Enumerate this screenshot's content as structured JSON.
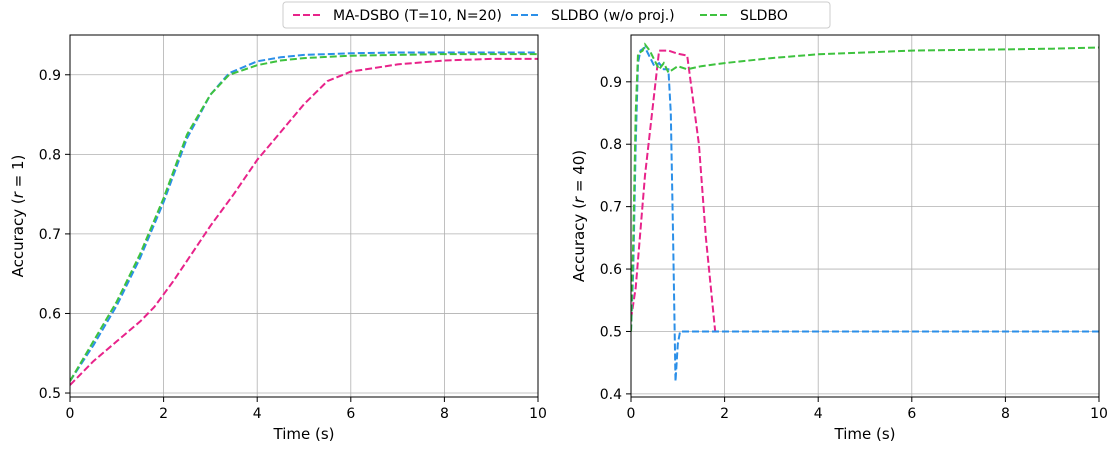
{
  "legend": {
    "position": "top-center",
    "items": [
      {
        "name": "MA-DSBO (T=10, N=20)",
        "color": "#e8238a"
      },
      {
        "name": "SLDBO (w/o proj.)",
        "color": "#2b8fe8"
      },
      {
        "name": "SLDBO",
        "color": "#3ec23e"
      }
    ]
  },
  "chart_data": [
    {
      "type": "line",
      "title": "",
      "xlabel": "Time (s)",
      "ylabel": "Accuracy (r = 1)",
      "ylabel_parts": {
        "prefix": "Accuracy (",
        "var": "r",
        "suffix": " = 1)"
      },
      "xlim": [
        0,
        10
      ],
      "ylim": [
        0.495,
        0.95
      ],
      "xticks": [
        0,
        2,
        4,
        6,
        8,
        10
      ],
      "yticks": [
        0.5,
        0.6,
        0.7,
        0.8,
        0.9
      ],
      "xtick_labels": [
        "0",
        "2",
        "4",
        "6",
        "8",
        "10"
      ],
      "ytick_labels": [
        "0.5",
        "0.6",
        "0.7",
        "0.8",
        "0.9"
      ],
      "grid": true,
      "series": [
        {
          "name": "MA-DSBO (T=10, N=20)",
          "color": "#e8238a",
          "x": [
            0,
            0.5,
            1,
            1.5,
            1.8,
            2.2,
            2.6,
            3.0,
            3.5,
            4.0,
            4.5,
            5.0,
            5.5,
            6.0,
            7.0,
            8.0,
            9.0,
            10.0
          ],
          "y": [
            0.51,
            0.54,
            0.565,
            0.59,
            0.608,
            0.64,
            0.675,
            0.71,
            0.75,
            0.793,
            0.828,
            0.863,
            0.892,
            0.904,
            0.913,
            0.918,
            0.92,
            0.92
          ]
        },
        {
          "name": "SLDBO (w/o proj.)",
          "color": "#2b8fe8",
          "x": [
            0,
            0.5,
            1.0,
            1.5,
            2.0,
            2.5,
            3.0,
            3.4,
            4.0,
            4.5,
            5.0,
            6.0,
            7.0,
            8.0,
            9.0,
            10.0
          ],
          "y": [
            0.515,
            0.56,
            0.61,
            0.67,
            0.74,
            0.82,
            0.875,
            0.902,
            0.917,
            0.922,
            0.925,
            0.927,
            0.928,
            0.928,
            0.928,
            0.928
          ]
        },
        {
          "name": "SLDBO",
          "color": "#3ec23e",
          "x": [
            0,
            0.5,
            1.0,
            1.5,
            2.0,
            2.5,
            3.0,
            3.4,
            4.0,
            4.5,
            5.0,
            6.0,
            7.0,
            8.0,
            9.0,
            10.0
          ],
          "y": [
            0.515,
            0.565,
            0.615,
            0.675,
            0.745,
            0.825,
            0.875,
            0.9,
            0.912,
            0.918,
            0.921,
            0.924,
            0.925,
            0.926,
            0.926,
            0.926
          ]
        }
      ]
    },
    {
      "type": "line",
      "title": "",
      "xlabel": "Time (s)",
      "ylabel": "Accuracy (r = 40)",
      "ylabel_parts": {
        "prefix": "Accuracy (",
        "var": "r",
        "suffix": " = 40)"
      },
      "xlim": [
        0,
        10
      ],
      "ylim": [
        0.395,
        0.975
      ],
      "xticks": [
        0,
        2,
        4,
        6,
        8,
        10
      ],
      "yticks": [
        0.4,
        0.5,
        0.6,
        0.7,
        0.8,
        0.9
      ],
      "xtick_labels": [
        "0",
        "2",
        "4",
        "6",
        "8",
        "10"
      ],
      "ytick_labels": [
        "0.4",
        "0.5",
        "0.6",
        "0.7",
        "0.8",
        "0.9"
      ],
      "grid": true,
      "series": [
        {
          "name": "MA-DSBO (T=10, N=20)",
          "color": "#e8238a",
          "x": [
            0,
            0.1,
            0.3,
            0.6,
            0.8,
            1.0,
            1.2,
            1.45,
            1.6,
            1.8
          ],
          "y": [
            0.52,
            0.57,
            0.75,
            0.95,
            0.95,
            0.945,
            0.942,
            0.8,
            0.65,
            0.5
          ]
        },
        {
          "name": "SLDBO (w/o proj.)",
          "color": "#2b8fe8",
          "x": [
            0,
            0.05,
            0.1,
            0.15,
            0.2,
            0.3,
            0.4,
            0.5,
            0.6,
            0.7,
            0.8,
            0.85,
            0.9,
            0.95,
            1.0,
            1.05,
            1.2,
            2.0,
            4.0,
            6.0,
            8.0,
            10.0
          ],
          "y": [
            0.5,
            0.6,
            0.8,
            0.93,
            0.95,
            0.955,
            0.94,
            0.925,
            0.93,
            0.92,
            0.92,
            0.85,
            0.65,
            0.42,
            0.48,
            0.5,
            0.5,
            0.5,
            0.5,
            0.5,
            0.5,
            0.5
          ]
        },
        {
          "name": "SLDBO",
          "color": "#3ec23e",
          "x": [
            0,
            0.05,
            0.1,
            0.15,
            0.25,
            0.3,
            0.4,
            0.5,
            0.6,
            0.7,
            0.8,
            0.9,
            1.0,
            1.2,
            1.5,
            2.0,
            3.0,
            4.0,
            5.0,
            6.0,
            7.0,
            8.0,
            9.0,
            10.0
          ],
          "y": [
            0.5,
            0.65,
            0.85,
            0.945,
            0.95,
            0.96,
            0.95,
            0.935,
            0.92,
            0.93,
            0.915,
            0.92,
            0.925,
            0.92,
            0.925,
            0.93,
            0.938,
            0.944,
            0.947,
            0.95,
            0.951,
            0.952,
            0.953,
            0.955
          ]
        }
      ]
    }
  ]
}
